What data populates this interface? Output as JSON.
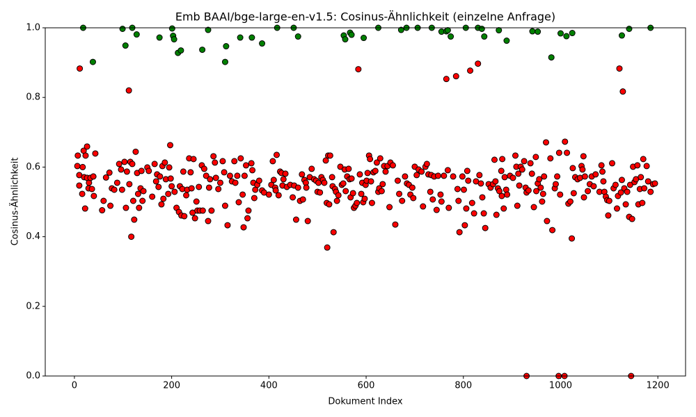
{
  "chart_data": {
    "type": "scatter",
    "title": "Emb BAAI/bge-large-en-v1.5: Cosinus-Ähnlichkeit (einzelne Anfrage)",
    "xlabel": "Dokument Index",
    "ylabel": "Cosinus-Ähnlichkeit",
    "xlim": [
      -60,
      1257
    ],
    "ylim": [
      0,
      1
    ],
    "xticks": [
      0,
      200,
      400,
      600,
      800,
      1000,
      1200
    ],
    "yticks": [
      {
        "value": 0,
        "label": "0.0"
      },
      0.2,
      0.4,
      0.6,
      0.8,
      {
        "value": 1,
        "label": "1.0"
      }
    ],
    "grid": false,
    "edgecolor": "#000000",
    "series": [
      {
        "color": "#ff0000",
        "x": [
          6,
          7,
          10,
          11,
          10,
          16,
          17,
          19,
          20,
          22,
          23,
          26,
          26,
          29,
          30,
          33,
          36,
          39,
          40,
          43,
          57,
          60,
          65,
          72,
          74,
          77,
          82,
          88,
          92,
          96,
          98,
          103,
          106,
          108,
          112,
          113,
          115,
          117,
          119,
          121,
          123,
          126,
          129,
          131,
          133,
          136,
          138,
          140,
          142,
          150,
          153,
          160,
          165,
          168,
          170,
          173,
          176,
          179,
          181,
          183,
          186,
          188,
          193,
          195,
          197,
          198,
          200,
          206,
          210,
          215,
          217,
          220,
          222,
          224,
          226,
          230,
          232,
          236,
          239,
          241,
          243,
          245,
          248,
          251,
          253,
          256,
          258,
          262,
          264,
          267,
          271,
          275,
          277,
          279,
          282,
          286,
          289,
          291,
          296,
          300,
          305,
          308,
          310,
          315,
          320,
          324,
          329,
          331,
          335,
          338,
          342,
          346,
          348,
          350,
          353,
          358,
          356,
          364,
          366,
          368,
          370,
          372,
          376,
          380,
          386,
          390,
          400,
          405,
          408,
          410,
          413,
          414,
          416,
          420,
          423,
          426,
          428,
          430,
          434,
          437,
          444,
          449,
          452,
          456,
          460,
          464,
          468,
          470,
          473,
          476,
          477,
          480,
          484,
          488,
          493,
          497,
          500,
          502,
          505,
          508,
          511,
          514,
          517,
          519,
          520,
          522,
          524,
          526,
          530,
          531,
          533,
          536,
          538,
          540,
          543,
          547,
          550,
          553,
          556,
          558,
          561,
          564,
          566,
          568,
          570,
          573,
          575,
          578,
          581,
          584,
          587,
          590,
          592,
          594,
          597,
          599,
          601,
          603,
          606,
          608,
          610,
          612,
          615,
          619,
          622,
          625,
          627,
          629,
          632,
          634,
          637,
          640,
          644,
          648,
          650,
          655,
          660,
          665,
          668,
          674,
          680,
          684,
          688,
          691,
          695,
          697,
          700,
          704,
          708,
          714,
          717,
          722,
          725,
          728,
          732,
          734,
          737,
          740,
          745,
          748,
          753,
          755,
          760,
          765,
          768,
          770,
          779,
          785,
          788,
          790,
          792,
          798,
          801,
          803,
          806,
          808,
          810,
          814,
          818,
          822,
          826,
          830,
          833,
          836,
          839,
          842,
          845,
          852,
          856,
          861,
          864,
          866,
          868,
          871,
          874,
          878,
          879,
          880,
          883,
          885,
          888,
          890,
          896,
          902,
          907,
          909,
          911,
          913,
          915,
          918,
          921,
          925,
          928,
          930,
          934,
          938,
          941,
          945,
          949,
          950,
          953,
          956,
          959,
          962,
          964,
          966,
          970,
          972,
          979,
          983,
          988,
          990,
          993,
          997,
          999,
          1009,
          1013,
          1016,
          1020,
          1023,
          1025,
          1027,
          1030,
          1035,
          1040,
          1043,
          1045,
          1047,
          1048,
          1050,
          1056,
          1060,
          1064,
          1068,
          1072,
          1080,
          1084,
          1086,
          1088,
          1090,
          1093,
          1096,
          1098,
          1100,
          1106,
          1109,
          1113,
          1116,
          1118,
          1121,
          1124,
          1126,
          1128,
          1131,
          1134,
          1137,
          1141,
          1143,
          1147,
          1149,
          1152,
          1155,
          1158,
          1160,
          1163,
          1165,
          1168,
          1170,
          1172,
          1177,
          1180,
          1185,
          1190,
          1194,
          930,
          996,
          1008,
          1145
        ],
        "values": [
          0.603,
          0.633,
          0.577,
          0.883,
          0.547,
          0.523,
          0.6,
          0.647,
          0.571,
          0.481,
          0.633,
          0.659,
          0.569,
          0.539,
          0.555,
          0.569,
          0.537,
          0.573,
          0.517,
          0.639,
          0.476,
          0.503,
          0.57,
          0.584,
          0.489,
          0.539,
          0.535,
          0.555,
          0.609,
          0.593,
          0.535,
          0.615,
          0.483,
          0.587,
          0.82,
          0.551,
          0.615,
          0.4,
          0.609,
          0.503,
          0.449,
          0.644,
          0.583,
          0.523,
          0.483,
          0.539,
          0.589,
          0.503,
          0.531,
          0.599,
          0.589,
          0.515,
          0.609,
          0.559,
          0.579,
          0.543,
          0.573,
          0.493,
          0.603,
          0.509,
          0.613,
          0.565,
          0.523,
          0.599,
          0.663,
          0.567,
          0.545,
          0.529,
          0.483,
          0.471,
          0.545,
          0.461,
          0.537,
          0.587,
          0.459,
          0.519,
          0.535,
          0.625,
          0.585,
          0.539,
          0.469,
          0.623,
          0.453,
          0.501,
          0.475,
          0.543,
          0.475,
          0.605,
          0.475,
          0.595,
          0.575,
          0.445,
          0.541,
          0.565,
          0.475,
          0.631,
          0.613,
          0.569,
          0.537,
          0.555,
          0.617,
          0.585,
          0.489,
          0.433,
          0.575,
          0.559,
          0.617,
          0.555,
          0.575,
          0.499,
          0.625,
          0.521,
          0.427,
          0.575,
          0.605,
          0.475,
          0.453,
          0.611,
          0.591,
          0.555,
          0.511,
          0.535,
          0.549,
          0.561,
          0.533,
          0.527,
          0.521,
          0.549,
          0.617,
          0.563,
          0.541,
          0.533,
          0.635,
          0.519,
          0.587,
          0.583,
          0.547,
          0.565,
          0.581,
          0.543,
          0.549,
          0.513,
          0.547,
          0.449,
          0.541,
          0.503,
          0.579,
          0.507,
          0.563,
          0.555,
          0.541,
          0.445,
          0.571,
          0.595,
          0.565,
          0.561,
          0.529,
          0.555,
          0.527,
          0.571,
          0.563,
          0.555,
          0.619,
          0.497,
          0.369,
          0.633,
          0.493,
          0.633,
          0.571,
          0.545,
          0.413,
          0.537,
          0.529,
          0.503,
          0.519,
          0.601,
          0.549,
          0.553,
          0.593,
          0.531,
          0.573,
          0.595,
          0.565,
          0.513,
          0.567,
          0.525,
          0.483,
          0.489,
          0.497,
          0.881,
          0.579,
          0.523,
          0.555,
          0.499,
          0.509,
          0.549,
          0.561,
          0.583,
          0.633,
          0.623,
          0.559,
          0.497,
          0.585,
          0.589,
          0.613,
          0.529,
          0.539,
          0.625,
          0.531,
          0.551,
          0.603,
          0.587,
          0.603,
          0.485,
          0.613,
          0.605,
          0.435,
          0.561,
          0.523,
          0.503,
          0.573,
          0.553,
          0.549,
          0.521,
          0.541,
          0.511,
          0.601,
          0.577,
          0.593,
          0.587,
          0.487,
          0.601,
          0.609,
          0.579,
          0.529,
          0.577,
          0.507,
          0.573,
          0.477,
          0.575,
          0.521,
          0.501,
          0.575,
          0.853,
          0.591,
          0.483,
          0.573,
          0.861,
          0.537,
          0.503,
          0.413,
          0.573,
          0.535,
          0.433,
          0.481,
          0.589,
          0.561,
          0.877,
          0.497,
          0.467,
          0.559,
          0.897,
          0.577,
          0.553,
          0.513,
          0.467,
          0.425,
          0.551,
          0.541,
          0.551,
          0.621,
          0.559,
          0.463,
          0.539,
          0.531,
          0.589,
          0.517,
          0.623,
          0.481,
          0.571,
          0.535,
          0.521,
          0.575,
          0.569,
          0.633,
          0.601,
          0.489,
          0.581,
          0.547,
          0.601,
          0.593,
          0.617,
          0.541,
          0.527,
          0.533,
          0.611,
          0.581,
          0.485,
          0.629,
          0.531,
          0.553,
          0.565,
          0.541,
          0.501,
          0.523,
          0.573,
          0.671,
          0.445,
          0.625,
          0.419,
          0.539,
          0.551,
          0.573,
          0.641,
          0.521,
          0.673,
          0.641,
          0.495,
          0.501,
          0.395,
          0.597,
          0.525,
          0.571,
          0.565,
          0.569,
          0.603,
          0.593,
          0.631,
          0.513,
          0.573,
          0.531,
          0.551,
          0.573,
          0.545,
          0.579,
          0.529,
          0.605,
          0.587,
          0.559,
          0.529,
          0.515,
          0.505,
          0.461,
          0.503,
          0.611,
          0.539,
          0.549,
          0.481,
          0.517,
          0.883,
          0.527,
          0.563,
          0.817,
          0.539,
          0.493,
          0.529,
          0.457,
          0.549,
          0.451,
          0.601,
          0.557,
          0.565,
          0.605,
          0.493,
          0.537,
          0.571,
          0.497,
          0.623,
          0.539,
          0.603,
          0.559,
          0.529,
          0.551,
          0.553,
          0,
          0,
          0,
          0
        ]
      },
      {
        "color": "#008000",
        "x": [
          18,
          38,
          99,
          105,
          119,
          128,
          175,
          201,
          203,
          205,
          213,
          219,
          263,
          275,
          310,
          312,
          341,
          365,
          386,
          417,
          451,
          460,
          554,
          557,
          567,
          570,
          595,
          625,
          672,
          683,
          706,
          735,
          755,
          765,
          768,
          774,
          805,
          830,
          838,
          843,
          873,
          889,
          942,
          953,
          981,
          1000,
          1012,
          1024,
          1126,
          1141,
          1185
        ],
        "values": [
          1.0,
          0.902,
          0.997,
          0.949,
          1.0,
          0.981,
          0.972,
          0.998,
          0.977,
          0.967,
          0.928,
          0.935,
          0.937,
          0.994,
          0.902,
          0.947,
          0.972,
          0.972,
          0.955,
          1.0,
          1.0,
          0.975,
          0.978,
          0.967,
          0.986,
          0.98,
          0.971,
          1.0,
          0.994,
          1.0,
          1.0,
          1.0,
          0.989,
          0.99,
          0.993,
          0.975,
          1.0,
          1.0,
          0.997,
          0.975,
          0.993,
          0.963,
          0.99,
          0.989,
          0.915,
          0.984,
          0.976,
          0.985,
          0.978,
          0.997,
          1.0
        ]
      }
    ]
  }
}
